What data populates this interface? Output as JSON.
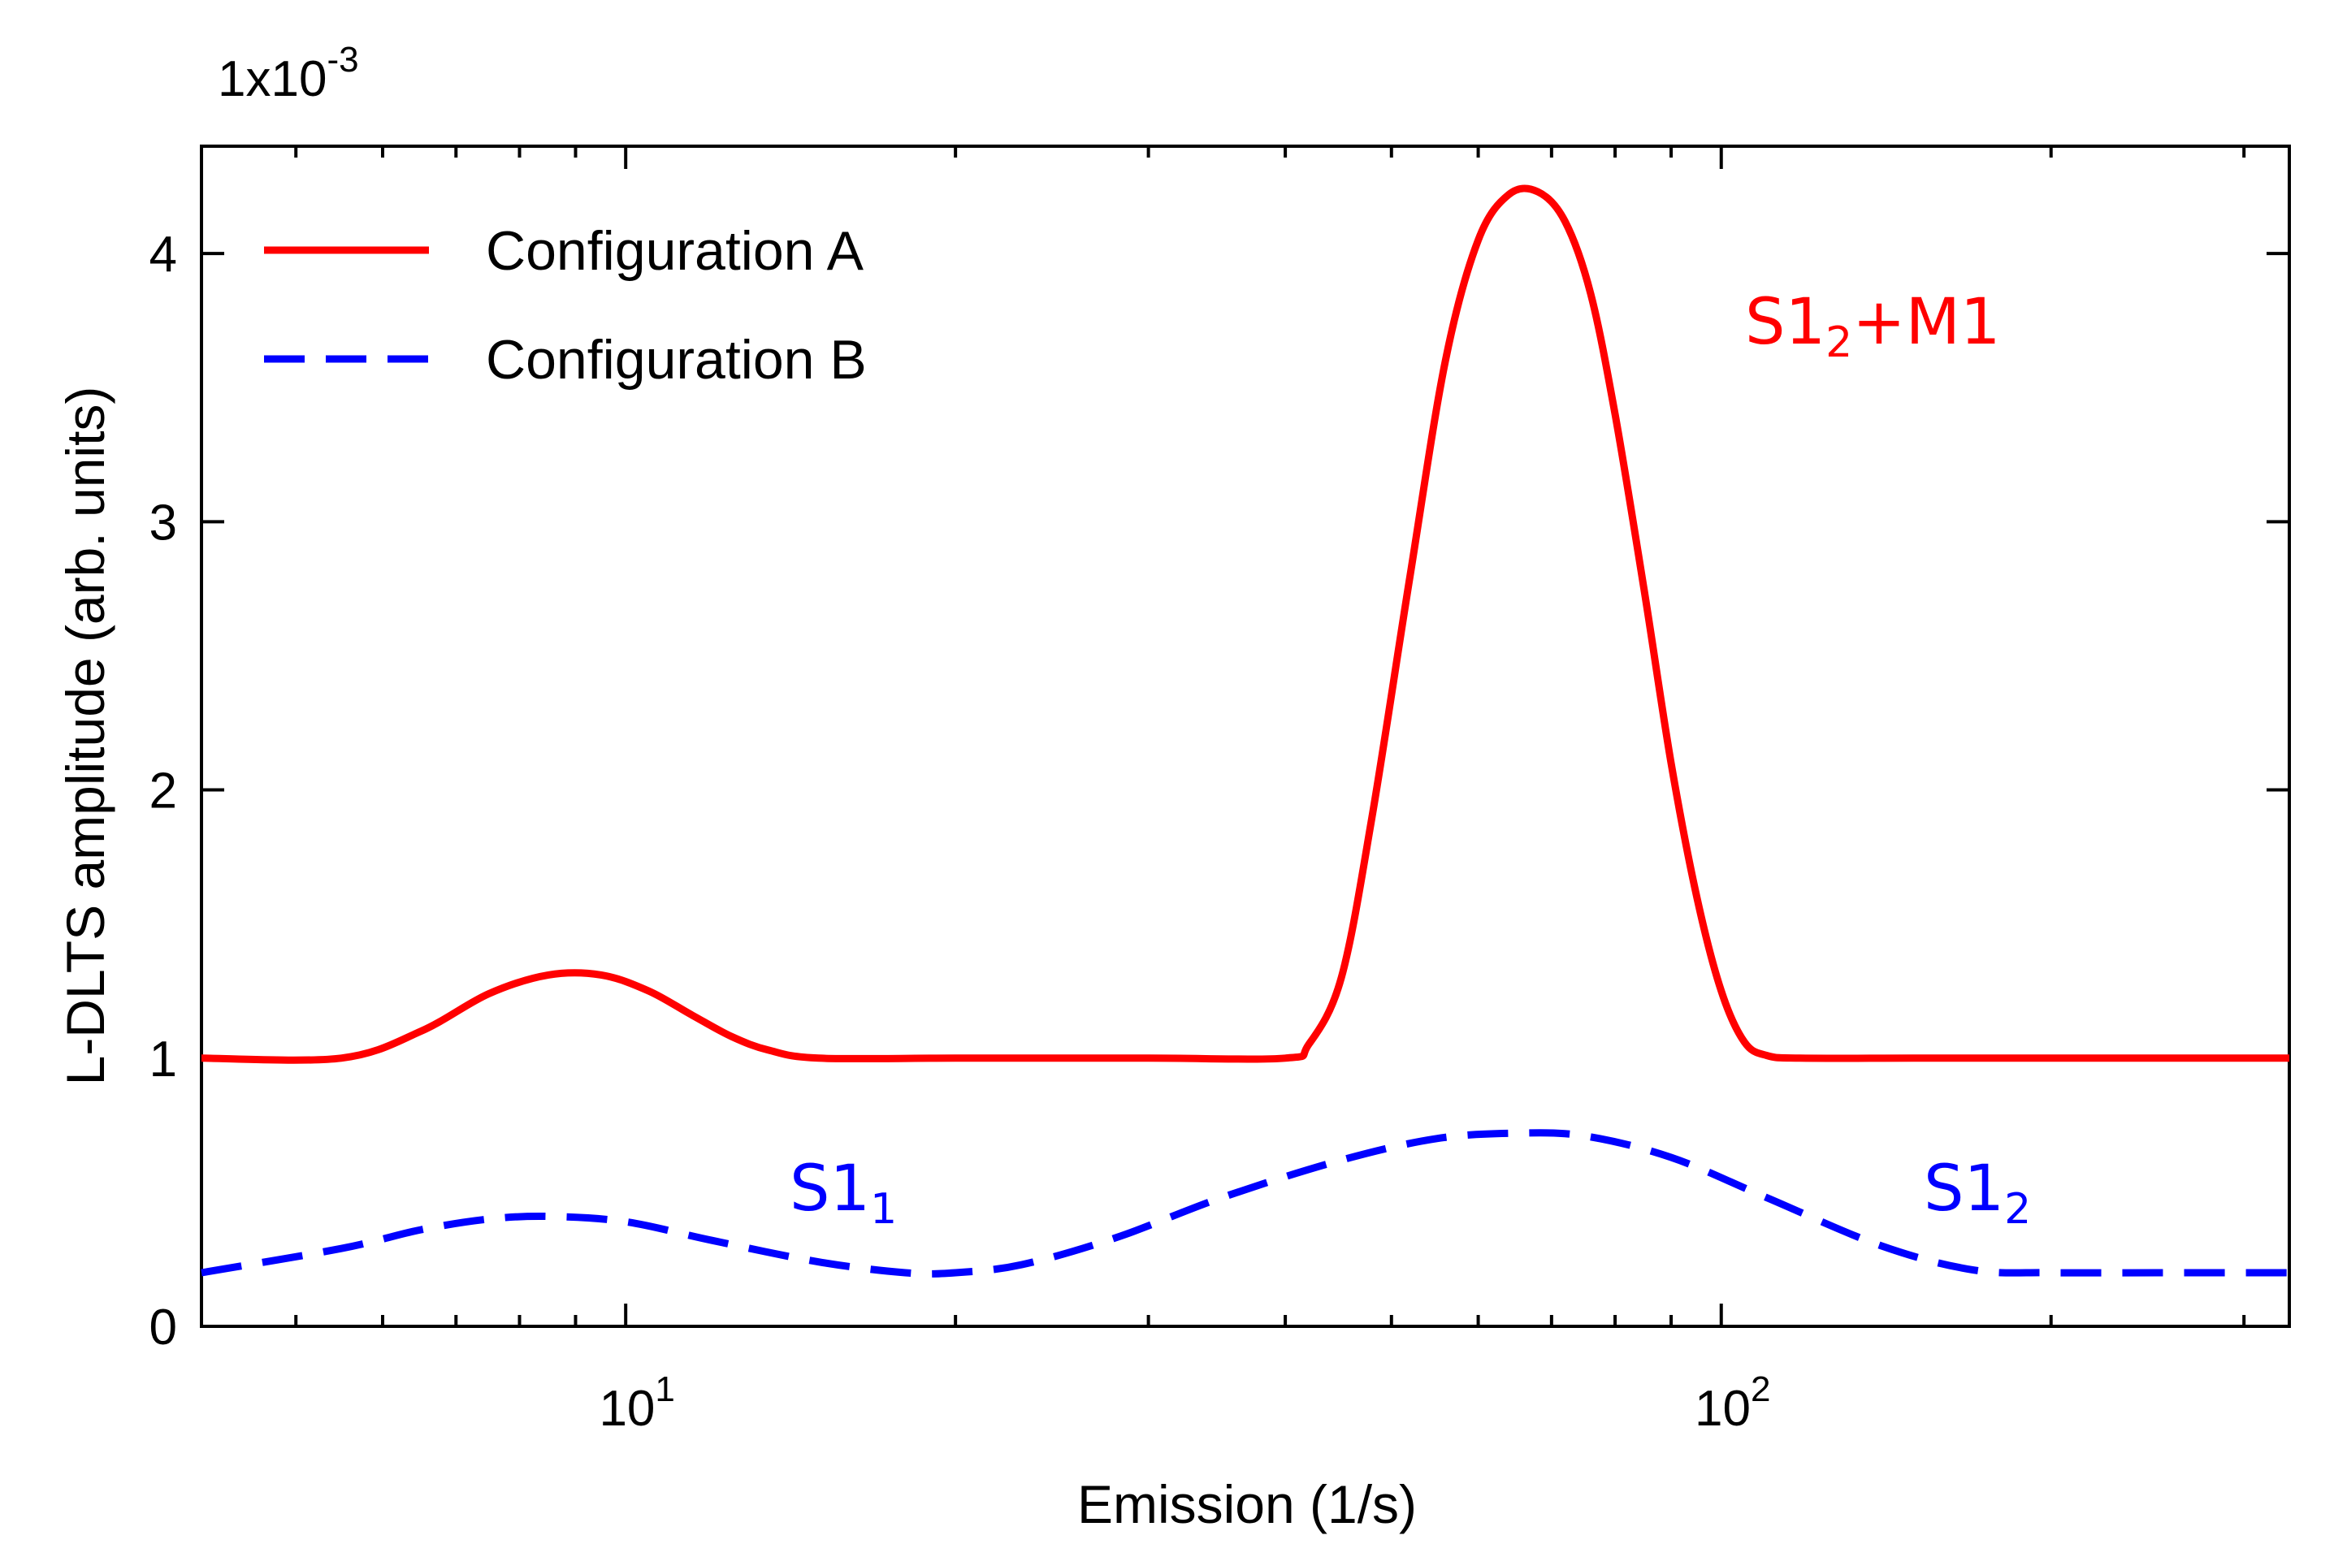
{
  "chart_data": {
    "type": "line",
    "xlabel": "Emission (1/s)",
    "ylabel": "L-DLTS amplitude (arb. units)",
    "y_scale_note": {
      "base": "1x10",
      "exponent": "-3"
    },
    "x_scale": "log",
    "xlim": [
      4.1,
      330
    ],
    "ylim": [
      0,
      4.4
    ],
    "x_ticks": [
      {
        "value": 10,
        "base": "10",
        "exponent": "1"
      },
      {
        "value": 100,
        "base": "10",
        "exponent": "2"
      }
    ],
    "y_ticks": [
      {
        "value": 0,
        "label": "0"
      },
      {
        "value": 1,
        "label": "1"
      },
      {
        "value": 2,
        "label": "2"
      },
      {
        "value": 3,
        "label": "3"
      },
      {
        "value": 4,
        "label": "4"
      }
    ],
    "legend": {
      "position": "top-left"
    },
    "series": [
      {
        "name": "Configuration A",
        "color": "#ff0000",
        "style": "solid",
        "x": [
          4.1,
          5.5,
          6.5,
          7.5,
          8.5,
          9.5,
          10.5,
          11.5,
          12.5,
          13.5,
          15,
          20,
          30,
          40,
          42,
          45,
          48,
          52,
          56,
          60,
          64,
          68,
          72,
          76,
          80,
          85,
          90,
          95,
          100,
          105,
          110,
          118,
          150,
          200,
          330
        ],
        "y": [
          1.0,
          1.0,
          1.1,
          1.24,
          1.31,
          1.31,
          1.25,
          1.16,
          1.08,
          1.03,
          1.0,
          1.0,
          1.0,
          1.0,
          1.05,
          1.3,
          1.9,
          2.8,
          3.6,
          4.05,
          4.22,
          4.23,
          4.12,
          3.85,
          3.4,
          2.75,
          2.1,
          1.6,
          1.25,
          1.06,
          1.01,
          1.0,
          1.0,
          1.0,
          1.0
        ]
      },
      {
        "name": "Configuration B",
        "color": "#0000ff",
        "style": "dashed",
        "x": [
          4.1,
          5.5,
          6.5,
          7.5,
          8.5,
          10,
          12,
          15,
          18,
          20,
          23,
          28,
          35,
          45,
          55,
          65,
          75,
          90,
          110,
          140,
          170,
          200,
          250,
          330
        ],
        "y": [
          0.2,
          0.29,
          0.36,
          0.4,
          0.41,
          0.39,
          0.32,
          0.24,
          0.2,
          0.2,
          0.23,
          0.33,
          0.48,
          0.62,
          0.7,
          0.72,
          0.71,
          0.63,
          0.48,
          0.3,
          0.21,
          0.2,
          0.2,
          0.2
        ]
      }
    ],
    "annotations": [
      {
        "id": "peak-a",
        "main": "S1",
        "sub": "2",
        "suffix": "+M1",
        "color": "#ff0000"
      },
      {
        "id": "peak-b1",
        "main": "S1",
        "sub": "1",
        "suffix": "",
        "color": "#0000ff"
      },
      {
        "id": "peak-b2",
        "main": "S1",
        "sub": "2",
        "suffix": "",
        "color": "#0000ff"
      }
    ]
  }
}
